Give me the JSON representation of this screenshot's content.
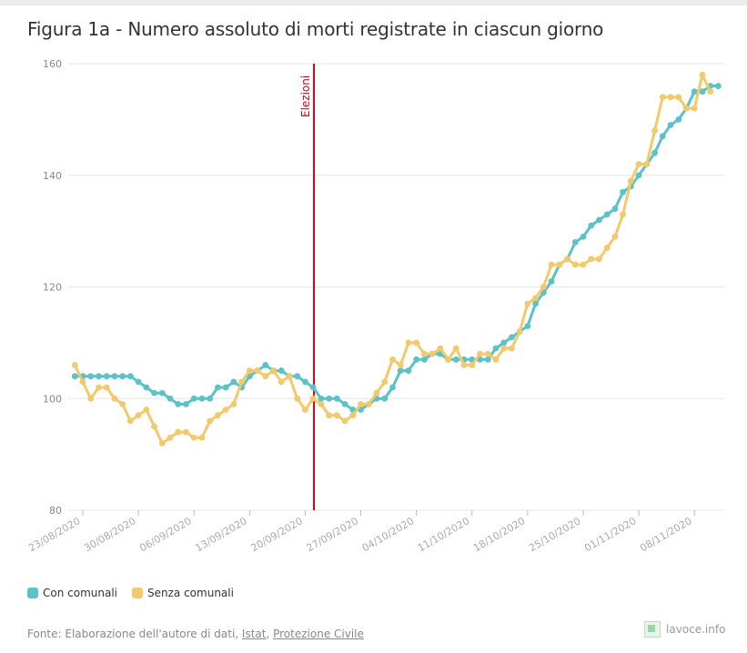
{
  "title": "Figura 1a - Numero assoluto di morti registrate in ciascun giorno",
  "chart_data": {
    "type": "line",
    "ylim": [
      80,
      160
    ],
    "y_ticks": [
      80,
      100,
      120,
      140,
      160
    ],
    "x_ticks": [
      {
        "label": "23/08/2020",
        "day": 0
      },
      {
        "label": "30/08/2020",
        "day": 7
      },
      {
        "label": "06/09/2020",
        "day": 14
      },
      {
        "label": "13/09/2020",
        "day": 21
      },
      {
        "label": "20/09/2020",
        "day": 28
      },
      {
        "label": "27/09/2020",
        "day": 35
      },
      {
        "label": "04/10/2020",
        "day": 42
      },
      {
        "label": "11/10/2020",
        "day": 49
      },
      {
        "label": "18/10/2020",
        "day": 56
      },
      {
        "label": "25/10/2020",
        "day": 63
      },
      {
        "label": "01/11/2020",
        "day": 70
      },
      {
        "label": "08/11/2020",
        "day": 77
      }
    ],
    "annotation": {
      "label": "Elezioni",
      "day": 29.1
    },
    "series": [
      {
        "name": "Con comunali",
        "color": "#5bc2c8",
        "start_day": -1,
        "values": [
          104,
          104,
          104,
          104,
          104,
          104,
          104,
          104,
          103,
          102,
          101,
          101,
          100,
          99,
          99,
          100,
          100,
          100,
          102,
          102,
          103,
          102,
          104,
          105,
          106,
          105,
          105,
          104,
          104,
          103,
          102,
          100,
          100,
          100,
          99,
          98,
          98,
          99,
          100,
          100,
          102,
          105,
          105,
          107,
          107,
          108,
          108,
          107,
          107,
          107,
          107,
          107,
          107,
          109,
          110,
          111,
          112,
          113,
          117,
          119,
          121,
          124,
          125,
          128,
          129,
          131,
          132,
          133,
          134,
          137,
          138,
          140,
          142,
          144,
          147,
          149,
          150,
          152,
          155,
          155,
          156,
          156
        ]
      },
      {
        "name": "Senza comunali",
        "color": "#f2c96b",
        "start_day": -1,
        "values": [
          106,
          103,
          100,
          102,
          102,
          100,
          99,
          96,
          97,
          98,
          95,
          92,
          93,
          94,
          94,
          93,
          93,
          96,
          97,
          98,
          99,
          103,
          105,
          105,
          104,
          105,
          103,
          104,
          100,
          98,
          100,
          99,
          97,
          97,
          96,
          97,
          99,
          99,
          101,
          103,
          107,
          106,
          110,
          110,
          108,
          108,
          109,
          107,
          109,
          106,
          106,
          108,
          108,
          107,
          109,
          109,
          112,
          117,
          118,
          120,
          124,
          124,
          125,
          124,
          124,
          125,
          125,
          127,
          129,
          133,
          139,
          142,
          142,
          148,
          154,
          154,
          154,
          152,
          152,
          158,
          155
        ]
      }
    ]
  },
  "legend": {
    "item1": "Con comunali",
    "item2": "Senza comunali"
  },
  "source": {
    "prefix": "Fonte: Elaborazione dell'autore di dati, ",
    "link1": "Istat",
    "sep": ", ",
    "link2": "Protezione Civile"
  },
  "brand": "lavoce.info",
  "colors": {
    "teal": "#5bc2c8",
    "yellow": "#f2c96b",
    "marker_line": "#d0021b",
    "grid": "#e6e6e6"
  }
}
